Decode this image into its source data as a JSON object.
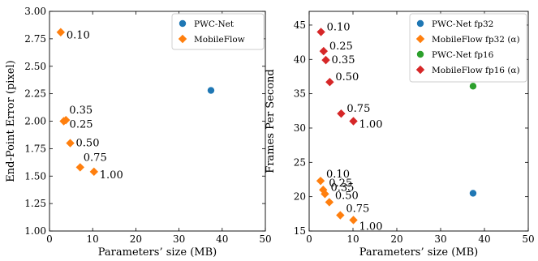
{
  "chart_data": [
    {
      "type": "scatter",
      "xlabel": "Parameters’ size (MB)",
      "ylabel": "End-Point Error (pixel)",
      "xlim": [
        0,
        50
      ],
      "ylim": [
        1.0,
        3.0
      ],
      "xticks": [
        0,
        10,
        20,
        30,
        40,
        50
      ],
      "yticks": [
        1.0,
        1.25,
        1.5,
        1.75,
        2.0,
        2.25,
        2.5,
        2.75,
        3.0
      ],
      "ytick_labels": [
        "1.00",
        "1.25",
        "1.50",
        "1.75",
        "2.00",
        "2.25",
        "2.50",
        "2.75",
        "3.00"
      ],
      "legend_position": "top-right",
      "series": [
        {
          "name": "PWC-Net",
          "marker": "circle",
          "color": "#1f77b4",
          "points": [
            {
              "x": 37.4,
              "y": 2.28,
              "label": ""
            }
          ]
        },
        {
          "name": "MobileFlow",
          "marker": "diamond",
          "color": "#ff7f0e",
          "points": [
            {
              "x": 2.6,
              "y": 2.81,
              "label": "0.10"
            },
            {
              "x": 3.3,
              "y": 2.0,
              "label": "0.25"
            },
            {
              "x": 3.8,
              "y": 2.01,
              "label": "0.35"
            },
            {
              "x": 4.8,
              "y": 1.8,
              "label": "0.50"
            },
            {
              "x": 7.1,
              "y": 1.58,
              "label": "0.75"
            },
            {
              "x": 10.3,
              "y": 1.54,
              "label": "1.00"
            }
          ]
        }
      ]
    },
    {
      "type": "scatter",
      "xlabel": "Parameters’ size (MB)",
      "ylabel": "Frames Per Second",
      "xlim": [
        0,
        50
      ],
      "ylim": [
        15,
        47
      ],
      "xticks": [
        0,
        10,
        20,
        30,
        40,
        50
      ],
      "yticks": [
        15,
        20,
        25,
        30,
        35,
        40,
        45
      ],
      "ytick_labels": [
        "15",
        "20",
        "25",
        "30",
        "35",
        "40",
        "45"
      ],
      "legend_position": "top-right",
      "series": [
        {
          "name": "PWC-Net fp32",
          "marker": "circle",
          "color": "#1f77b4",
          "points": [
            {
              "x": 37.4,
              "y": 20.5,
              "label": ""
            }
          ]
        },
        {
          "name": "MobileFlow fp32 (α)",
          "marker": "diamond",
          "color": "#ff7f0e",
          "points": [
            {
              "x": 2.6,
              "y": 22.3,
              "label": "0.10"
            },
            {
              "x": 3.2,
              "y": 21.0,
              "label": "0.25"
            },
            {
              "x": 3.6,
              "y": 20.4,
              "label": "0.35"
            },
            {
              "x": 4.6,
              "y": 19.2,
              "label": "0.50"
            },
            {
              "x": 7.1,
              "y": 17.3,
              "label": "0.75"
            },
            {
              "x": 10.1,
              "y": 16.6,
              "label": "1.00"
            }
          ]
        },
        {
          "name": "PWC-Net fp16",
          "marker": "circle",
          "color": "#2ca02c",
          "points": [
            {
              "x": 37.4,
              "y": 36.1,
              "label": ""
            }
          ]
        },
        {
          "name": "MobileFlow fp16 (α)",
          "marker": "diamond",
          "color": "#d62728",
          "points": [
            {
              "x": 2.7,
              "y": 44.0,
              "label": "0.10"
            },
            {
              "x": 3.3,
              "y": 41.2,
              "label": "0.25"
            },
            {
              "x": 3.8,
              "y": 39.9,
              "label": "0.35"
            },
            {
              "x": 4.7,
              "y": 36.7,
              "label": "0.50"
            },
            {
              "x": 7.3,
              "y": 32.1,
              "label": "0.75"
            },
            {
              "x": 10.1,
              "y": 31.0,
              "label": "1.00"
            }
          ]
        }
      ]
    }
  ]
}
